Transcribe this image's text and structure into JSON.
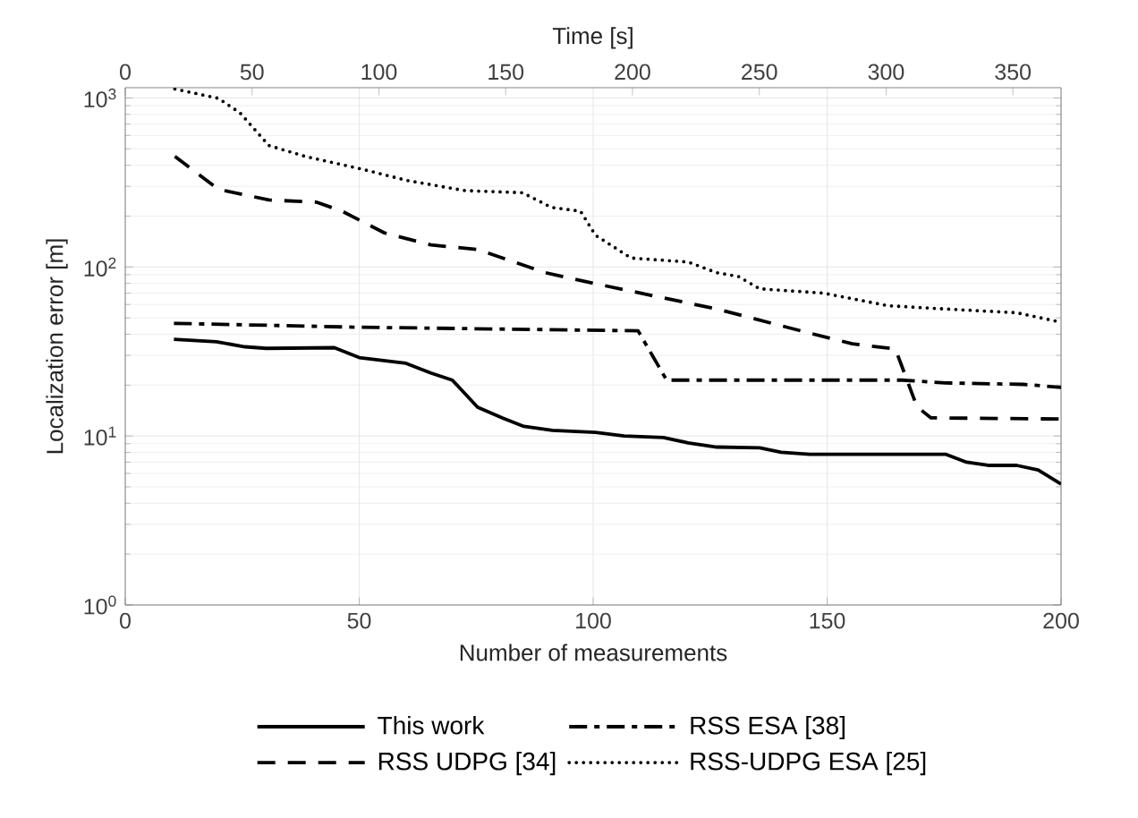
{
  "chart_data": {
    "type": "line",
    "xlabel": "Number of measurements",
    "ylabel": "Localization error [m]",
    "x2label": "Time [s]",
    "xlim": [
      0,
      200
    ],
    "xticks": [
      0,
      50,
      100,
      150,
      200
    ],
    "x2lim": [
      0,
      369
    ],
    "x2ticks": [
      0,
      50,
      100,
      150,
      200,
      250,
      300,
      350
    ],
    "ylim": [
      1,
      1150
    ],
    "yticks": [
      {
        "value": 1,
        "label": "10$^{0}$"
      },
      {
        "value": 10,
        "label": "10$^{1}$"
      },
      {
        "value": 100,
        "label": "10$^{2}$"
      },
      {
        "value": 1000,
        "label": "10$^{3}$"
      }
    ],
    "log": "y",
    "grid": true,
    "legend": "bottom",
    "marker": "none",
    "series": [
      {
        "name": "This work",
        "color": "#000000",
        "line_style": "solid",
        "x": [
          10.4,
          19.5,
          25.6,
          30.2,
          44.7,
          50,
          60,
          65.3,
          69.9,
          75.3,
          80.6,
          85.2,
          91.3,
          100.5,
          106.6,
          115,
          120.3,
          126.4,
          135.6,
          140.2,
          146.3,
          175.3,
          179.8,
          184.4,
          190.5,
          195.1,
          200
        ],
        "values": [
          37.3,
          36.1,
          33.7,
          33.0,
          33.3,
          29.1,
          26.9,
          23.6,
          21.4,
          14.8,
          12.8,
          11.4,
          10.8,
          10.5,
          10.0,
          9.8,
          9.1,
          8.6,
          8.5,
          8.0,
          7.8,
          7.8,
          7.0,
          6.7,
          6.7,
          6.3,
          5.2
        ]
      },
      {
        "name": "RSS ESA [38]",
        "color": "#000000",
        "line_style": "dashdot",
        "x": [
          10.4,
          50,
          109.6,
          115.7,
          166,
          175.3,
          192,
          200
        ],
        "values": [
          46.4,
          44.0,
          41.9,
          21.4,
          21.4,
          20.6,
          20.2,
          19.4
        ]
      },
      {
        "name": "RSS UDPG [34]",
        "color": "#000000",
        "line_style": "dashed",
        "x": [
          10.6,
          19.9,
          30.7,
          40.8,
          46.3,
          55.4,
          65.3,
          75.3,
          89.8,
          100.5,
          126.4,
          146.3,
          155.4,
          164.6,
          169.2,
          172.2,
          200
        ],
        "values": [
          451,
          288,
          249,
          242,
          214,
          159,
          135,
          127,
          92.5,
          79.6,
          56.4,
          40.6,
          35.1,
          32.7,
          14.9,
          12.8,
          12.6
        ]
      },
      {
        "name": "RSS-UDPG ESA [25]",
        "color": "#000000",
        "line_style": "dotted",
        "x": [
          10.6,
          19.9,
          24.5,
          30.7,
          38.5,
          51,
          60.2,
          72.6,
          84.9,
          91.1,
          97.3,
          100.5,
          108.1,
          120.3,
          126.4,
          131,
          135.6,
          149.3,
          163,
          175.3,
          190.5,
          200
        ],
        "values": [
          1130,
          995,
          817,
          523,
          451,
          377,
          325,
          283,
          275,
          225,
          214,
          154,
          113,
          107,
          92.5,
          88,
          74.3,
          70,
          59,
          56.4,
          53.6,
          47.1
        ]
      }
    ]
  }
}
